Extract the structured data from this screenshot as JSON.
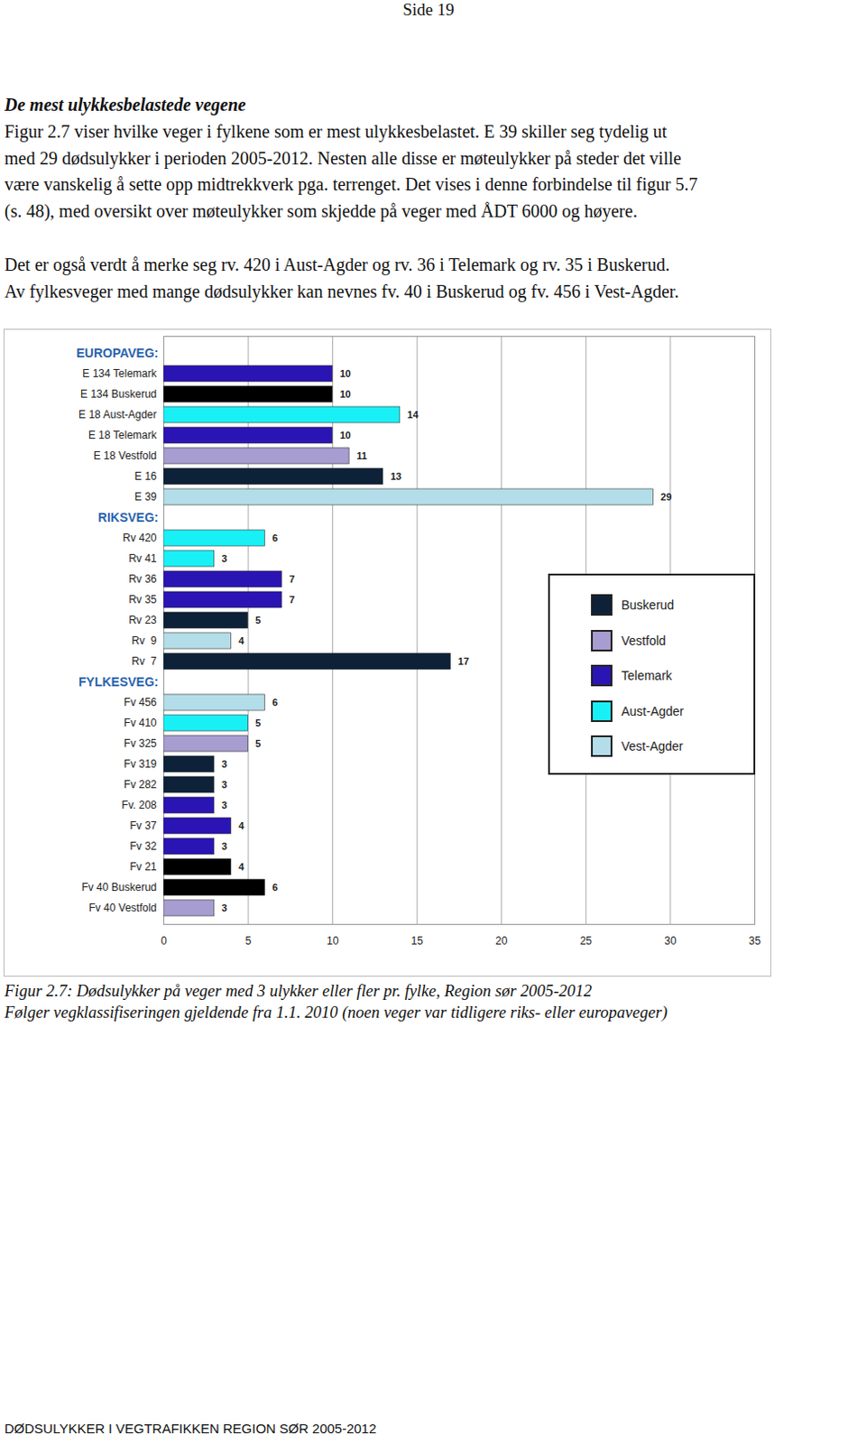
{
  "page": {
    "header": "Side 19",
    "heading": "De mest ulykkesbelastede vegene",
    "paragraphs": [
      [
        "Figur 2.7 viser hvilke veger i fylkene som er mest ulykkesbelastet. E 39 skiller seg tydelig ut",
        "med 29 dødsulykker i perioden 2005-2012. Nesten alle disse er møteulykker på steder det ville",
        "være vanskelig å sette opp midtrekkverk pga. terrenget. Det vises i denne forbindelse til figur 5.7",
        "(s. 48), med oversikt over møteulykker som skjedde på veger med ÅDT 6000 og høyere."
      ],
      [
        "Det er også verdt å merke seg rv. 420 i Aust-Agder og rv. 36 i Telemark og rv. 35 i Buskerud.",
        "Av fylkesveger med mange dødsulykker kan nevnes fv. 40 i Buskerud og fv. 456 i Vest-Agder."
      ]
    ],
    "caption": [
      "Figur 2.7: Dødsulykker på veger med 3 ulykker eller fler pr. fylke, Region sør 2005-2012",
      "Følger vegklassifiseringen gjeldende fra 1.1. 2010 (noen veger var tidligere riks- eller europaveger)"
    ],
    "footer": "DØDSULYKKER I VEGTRAFIKKEN REGION SØR 2005-2012"
  },
  "chart_data": {
    "type": "bar",
    "orientation": "horizontal",
    "data_labels": true,
    "grid": true,
    "xlim": [
      0,
      35
    ],
    "xticks": [
      0,
      5,
      10,
      15,
      20,
      25,
      30,
      35
    ],
    "groups": [
      {
        "name": "EUROPAVEG:",
        "categories": [
          "E 134 Telemark",
          "E 134 Buskerud",
          "E 18 Aust-Agder",
          "E 18 Telemark",
          "E 18 Vestfold",
          "E 16",
          "E 39"
        ],
        "values": [
          10,
          10,
          14,
          10,
          11,
          13,
          29
        ],
        "colors": [
          "#2b14b4",
          "#000000",
          "#19f0f5",
          "#2b14b4",
          "#a79dd0",
          "#0d2238",
          "#b3dde8"
        ]
      },
      {
        "name": "RIKSVEG:",
        "categories": [
          "Rv 420",
          "Rv 41",
          "Rv 36",
          "Rv 35",
          "Rv 23",
          "Rv  9",
          "Rv  7"
        ],
        "values": [
          6,
          3,
          7,
          7,
          5,
          4,
          17
        ],
        "colors": [
          "#19f0f5",
          "#19f0f5",
          "#2b14b4",
          "#2b14b4",
          "#0d2238",
          "#b3dde8",
          "#0d2238"
        ]
      },
      {
        "name": "FYLKESVEG:",
        "categories": [
          "Fv 456",
          "Fv 410",
          "Fv 325",
          "Fv 319",
          "Fv 282",
          "Fv. 208",
          "Fv 37",
          "Fv 32",
          "Fv 21",
          "Fv 40 Buskerud",
          "Fv 40 Vestfold"
        ],
        "values": [
          6,
          5,
          5,
          3,
          3,
          3,
          4,
          3,
          4,
          6,
          3
        ],
        "colors": [
          "#b3dde8",
          "#19f0f5",
          "#a79dd0",
          "#0d2238",
          "#0d2238",
          "#2b14b4",
          "#2b14b4",
          "#2b14b4",
          "#000000",
          "#000000",
          "#a79dd0"
        ]
      }
    ],
    "legend_items": [
      {
        "name": "Buskerud",
        "color": "#0d2238"
      },
      {
        "name": "Vestfold",
        "color": "#a79dd0"
      },
      {
        "name": "Telemark",
        "color": "#2b14b4"
      },
      {
        "name": "Aust-Agder",
        "color": "#19f0f5"
      },
      {
        "name": "Vest-Agder",
        "color": "#b3dde8"
      }
    ]
  }
}
